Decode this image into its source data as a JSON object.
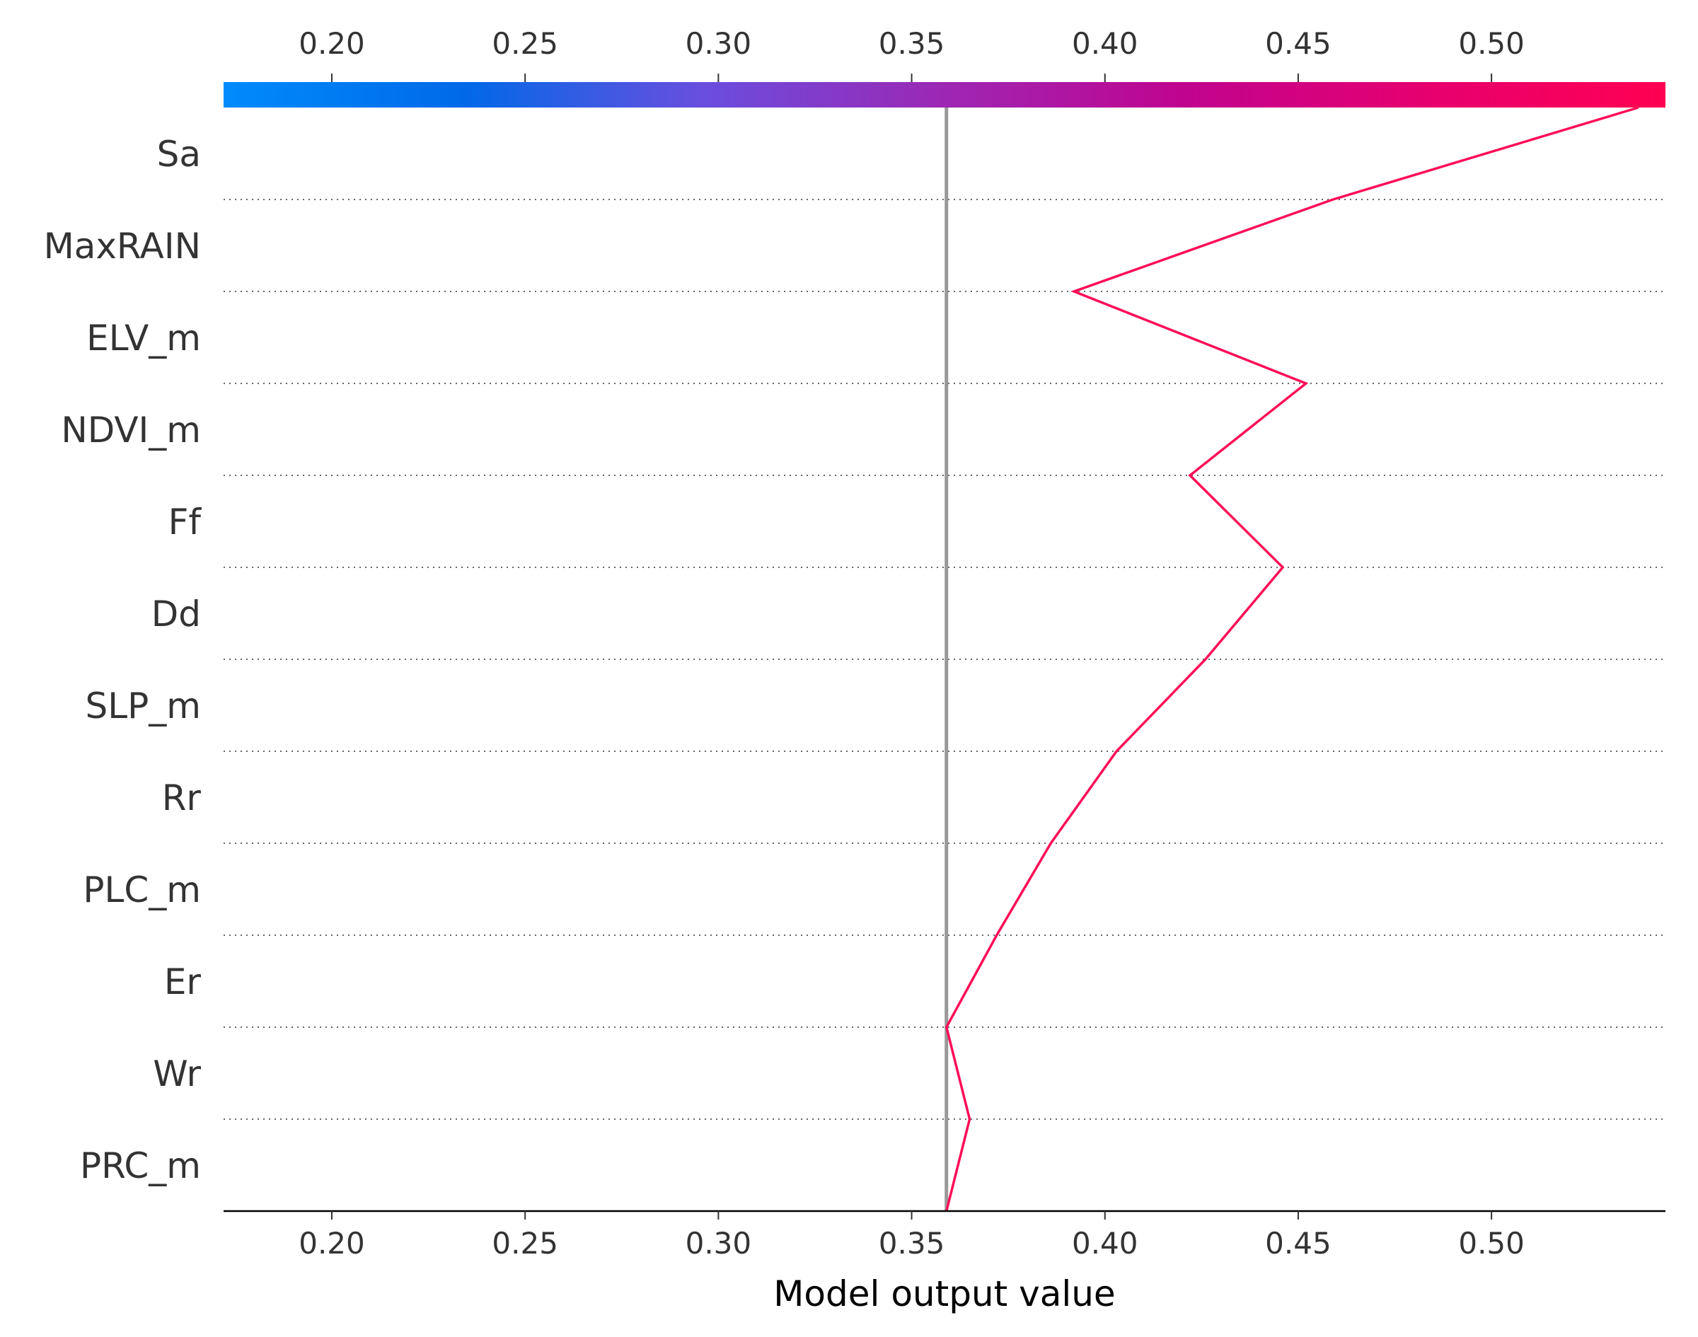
{
  "chart_data": {
    "type": "line",
    "subtype": "shap-decision-plot",
    "title": "",
    "xlabel": "Model output value",
    "ylabel": "",
    "xlim": [
      0.172,
      0.545
    ],
    "xticks": [
      0.2,
      0.25,
      0.3,
      0.35,
      0.4,
      0.45,
      0.5
    ],
    "xtick_labels": [
      "0.20",
      "0.25",
      "0.30",
      "0.35",
      "0.40",
      "0.45",
      "0.50"
    ],
    "base_value": 0.359,
    "features": [
      "Sa",
      "MaxRAIN",
      "ELV_m",
      "NDVI_m",
      "Ff",
      "Dd",
      "SLP_m",
      "Rr",
      "PLC_m",
      "Er",
      "Wr",
      "PRC_m"
    ],
    "series": [
      {
        "values": [
          0.538,
          0.459,
          0.392,
          0.452,
          0.422,
          0.446,
          0.426,
          0.403,
          0.386,
          0.372,
          0.359,
          0.365,
          0.359
        ]
      }
    ],
    "line_color": "#ff0d57",
    "base_line_color": "#999999",
    "colorbar": {
      "position": "top",
      "colors": [
        "#008bfb",
        "#0069e8",
        "#6a4ede",
        "#9d27b4",
        "#c0048f",
        "#e6006f",
        "#ff0052"
      ]
    },
    "grid": "dotted horizontal separators"
  }
}
